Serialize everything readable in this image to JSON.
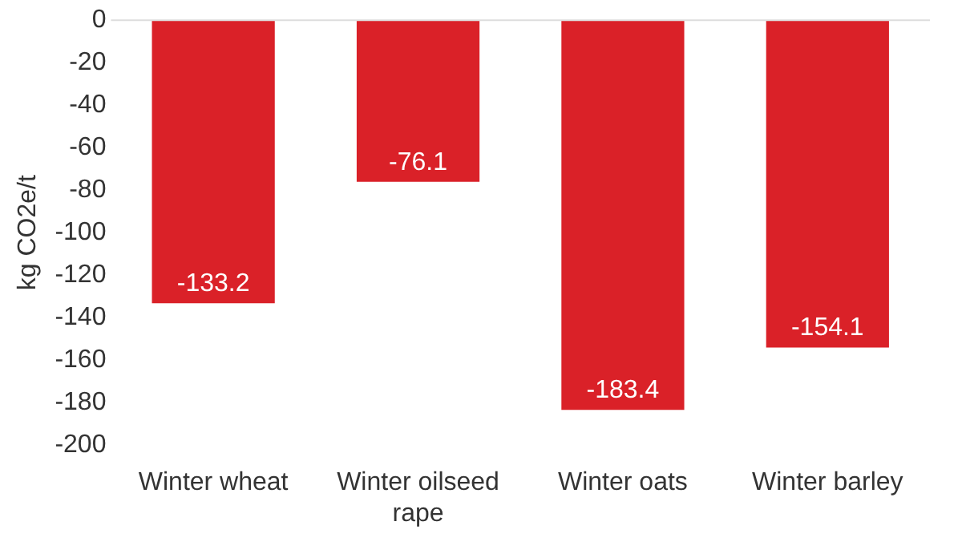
{
  "chart_data": {
    "type": "bar",
    "ylabel": "kg CO2e/t",
    "categories": [
      "Winter wheat",
      "Winter oilseed rape",
      "Winter oats",
      "Winter barley"
    ],
    "values": [
      -133.2,
      -76.1,
      -183.4,
      -154.1
    ],
    "color": "#da2128",
    "ylim": [
      -200,
      0
    ],
    "yticks": [
      0,
      -20,
      -40,
      -60,
      -80,
      -100,
      -120,
      -140,
      -160,
      -180,
      -200
    ],
    "grid": false,
    "legend": false,
    "data_labels": true
  }
}
